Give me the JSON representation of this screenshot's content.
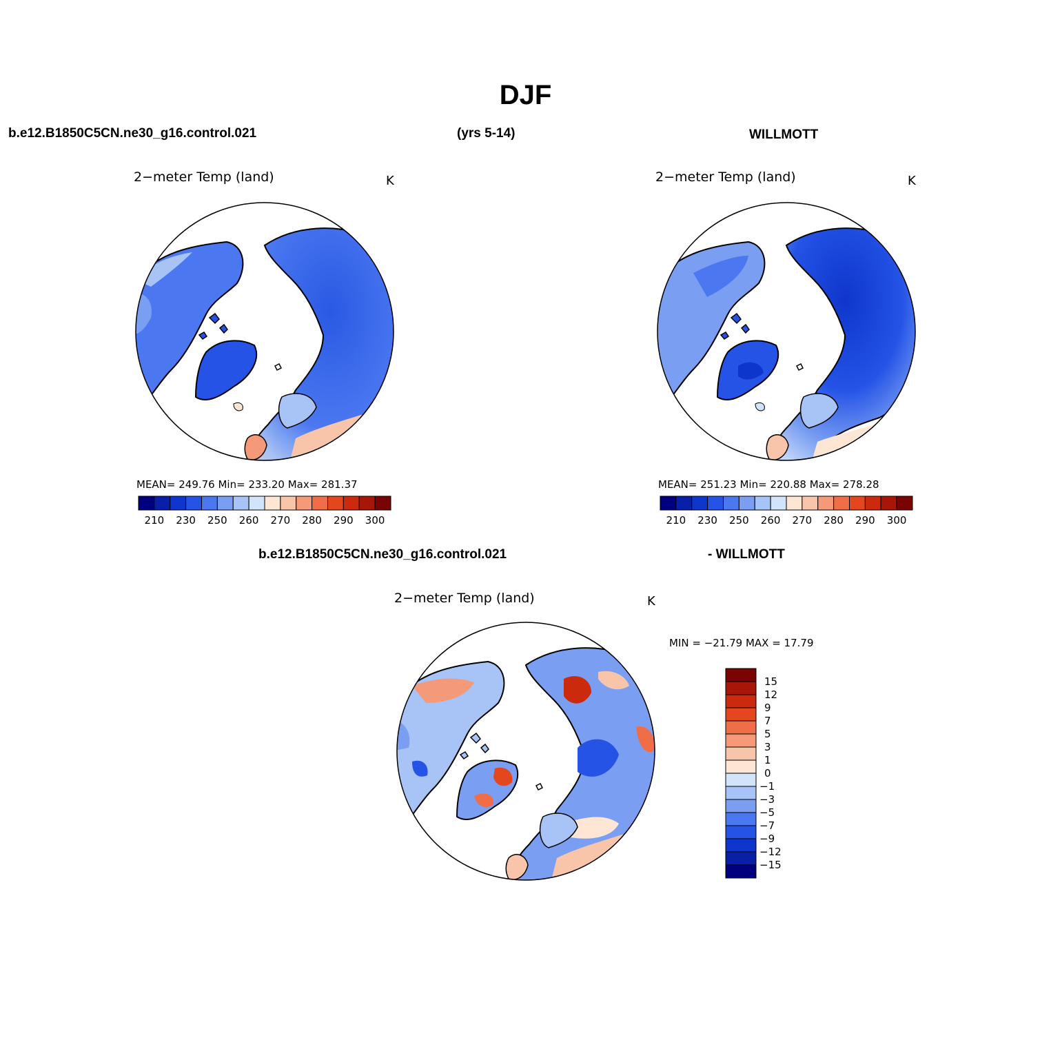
{
  "figure": {
    "title": "DJF",
    "case_name": "b.e12.B1850C5CN.ne30_g16.control.021",
    "years": "(yrs 5-14)",
    "obs_name": "WILLMOTT",
    "diff_case_name": "b.e12.B1850C5CN.ne30_g16.control.021",
    "diff_obs_name": "- WILLMOTT"
  },
  "panels": [
    {
      "id": "model",
      "title": "2−meter Temp (land)",
      "unit": "K",
      "stats": "MEAN= 249.76   Min= 233.20   Max= 281.37"
    },
    {
      "id": "obs",
      "title": "2−meter Temp (land)",
      "unit": "K",
      "stats": "MEAN= 251.23   Min= 220.88   Max= 278.28"
    },
    {
      "id": "diff",
      "title": "2−meter Temp (land)",
      "unit": "K",
      "stats": "MIN = −21.79 MAX =   17.79"
    }
  ],
  "colorbars": {
    "abs": {
      "colors": [
        "#00007f",
        "#0a1fa8",
        "#0f36cc",
        "#2453e6",
        "#4b78f0",
        "#7a9ef2",
        "#a8c3f5",
        "#d2e4fa",
        "#fde6d4",
        "#f8c5aa",
        "#f49a78",
        "#ef6e48",
        "#e4461e",
        "#cc2a0c",
        "#a81609",
        "#7a0404"
      ],
      "tick_labels": [
        "210",
        "230",
        "250",
        "260",
        "270",
        "280",
        "290",
        "300"
      ]
    },
    "diff": {
      "colors": [
        "#00007f",
        "#0a1fa8",
        "#0f36cc",
        "#2453e6",
        "#4b78f0",
        "#7a9ef2",
        "#a8c3f5",
        "#d2e4fa",
        "#fde6d4",
        "#f8c5aa",
        "#f49a78",
        "#ef6e48",
        "#e4461e",
        "#cc2a0c",
        "#a81609",
        "#7a0404"
      ],
      "tick_labels": [
        "15",
        "12",
        "9",
        "7",
        "5",
        "3",
        "1",
        "0",
        "−1",
        "−3",
        "−5",
        "−7",
        "−9",
        "−12",
        "−15"
      ]
    }
  },
  "map_colors": {
    "ocean": "#ffffff",
    "coast": "#000000"
  }
}
